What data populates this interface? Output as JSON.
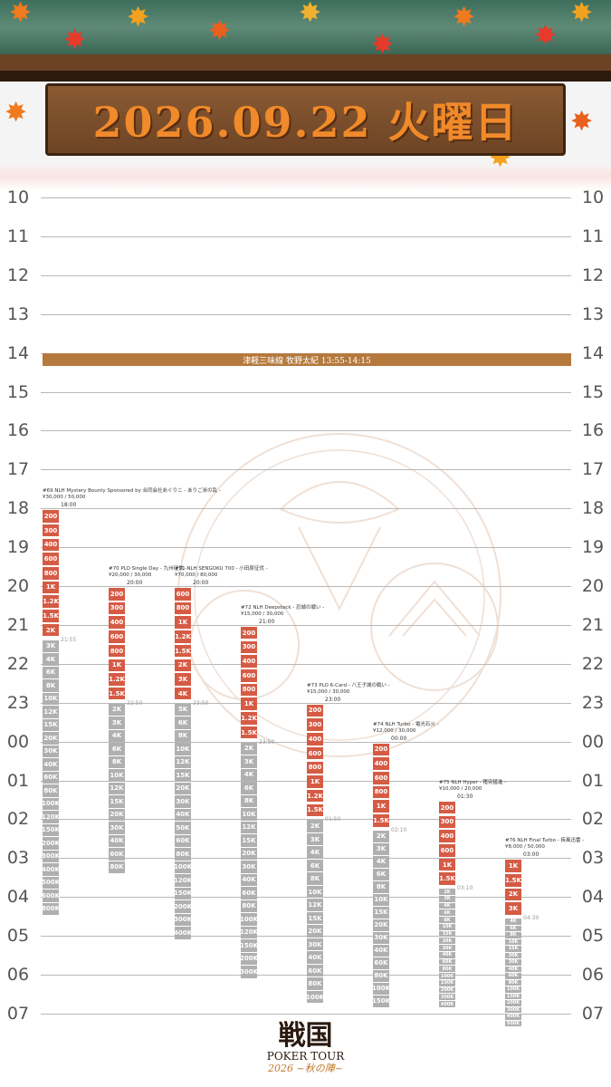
{
  "header": {
    "date": "2026.09.22 火曜日",
    "accent_color": "#f08a2a"
  },
  "hours": [
    "10",
    "11",
    "12",
    "13",
    "14",
    "15",
    "16",
    "17",
    "18",
    "19",
    "20",
    "21",
    "22",
    "23",
    "00",
    "01",
    "02",
    "03",
    "04",
    "05",
    "06",
    "07"
  ],
  "banner": {
    "text": "津軽三味線 牧野太紀 13:55-14:15"
  },
  "events": [
    {
      "title": "#69 NLH Mystery Bounty Sponsored by 合同会社あぐりこ - ありご米の乱 -",
      "price": "¥30,000 / 50,000",
      "start": "18:00",
      "end": "21:55",
      "levels_red": [
        "200",
        "300",
        "400",
        "600",
        "800",
        "1K",
        "1.2K",
        "1.5K",
        "2K"
      ],
      "levels_grey": [
        "3K",
        "4K",
        "6K",
        "8K",
        "10K",
        "12K",
        "15K",
        "20K",
        "30K",
        "40K",
        "60K",
        "80K",
        "100K",
        "120K",
        "150K",
        "200K",
        "300K",
        "400K",
        "500K",
        "600K",
        "800K"
      ]
    },
    {
      "title": "#70 PLO Single Day - 九州征伐 -",
      "price": "¥20,000 / 30,000",
      "start": "20:00",
      "end": "22:50",
      "levels_red": [
        "200",
        "300",
        "400",
        "600",
        "800",
        "1K",
        "1.2K",
        "1.5K"
      ],
      "levels_grey": [
        "2K",
        "3K",
        "4K",
        "6K",
        "8K",
        "10K",
        "12K",
        "15K",
        "20K",
        "30K",
        "40K",
        "60K",
        "80K"
      ]
    },
    {
      "title": "#71 NLH SENGOKU 700 - 小田原征伐 -",
      "price": "¥70,000 / 80,000",
      "start": "20:00",
      "end": "23:50",
      "levels_red": [
        "600",
        "800",
        "1K",
        "1.2K",
        "1.5K",
        "2K",
        "3K",
        "4K"
      ],
      "levels_grey": [
        "5K",
        "6K",
        "8K",
        "10K",
        "12K",
        "15K",
        "20K",
        "30K",
        "40K",
        "50K",
        "60K",
        "80K",
        "100K",
        "120K",
        "150K",
        "200K",
        "300K",
        "400K"
      ]
    },
    {
      "title": "#72 NLH Deepstack - 忍城の戦い -",
      "price": "¥15,000 / 30,000",
      "start": "21:00",
      "end": "23:50",
      "levels_red": [
        "200",
        "300",
        "400",
        "600",
        "800",
        "1K",
        "1.2K",
        "1.5K"
      ],
      "levels_grey": [
        "2K",
        "3K",
        "4K",
        "6K",
        "8K",
        "10K",
        "12K",
        "15K",
        "20K",
        "30K",
        "40K",
        "60K",
        "80K",
        "100K",
        "120K",
        "150K",
        "200K",
        "300K"
      ]
    },
    {
      "title": "#73 PLO 6-Card - 八王子城の戦い -",
      "price": "¥15,000 / 30,000",
      "start": "23:00",
      "end": "01:50",
      "levels_red": [
        "200",
        "300",
        "400",
        "600",
        "800",
        "1K",
        "1.2K",
        "1.5K"
      ],
      "levels_grey": [
        "2K",
        "3K",
        "4K",
        "6K",
        "8K",
        "10K",
        "12K",
        "15K",
        "20K",
        "30K",
        "40K",
        "60K",
        "80K",
        "100K"
      ]
    },
    {
      "title": "#74 NLH Turbo - 電光石火 -",
      "price": "¥12,000 / 30,000",
      "start": "00:00",
      "end": "02:10",
      "levels_red": [
        "200",
        "400",
        "600",
        "800",
        "1K",
        "1.5K"
      ],
      "levels_grey": [
        "2K",
        "3K",
        "4K",
        "6K",
        "8K",
        "10K",
        "15K",
        "20K",
        "30K",
        "40K",
        "60K",
        "80K",
        "100K",
        "150K"
      ]
    },
    {
      "title": "#75 NLH Hyper - 猪突猛進 -",
      "price": "¥10,000 / 20,000",
      "start": "01:30",
      "end": "03:10",
      "levels_red": [
        "200",
        "300",
        "400",
        "600",
        "1K",
        "1.5K"
      ],
      "levels_grey": [
        "2K",
        "3K",
        "4K",
        "6K",
        "8K",
        "10K",
        "15K",
        "20K",
        "30K",
        "40K",
        "60K",
        "80K",
        "100K",
        "150K",
        "200K",
        "300K",
        "400K"
      ]
    },
    {
      "title": "#76 NLH Final Turbo - 疾風迅雷 -",
      "price": "¥8,000 / 50,000",
      "start": "03:00",
      "end": "04:30",
      "levels_red": [
        "1K",
        "1.5K",
        "2K",
        "3K"
      ],
      "levels_grey": [
        "4K",
        "6K",
        "8K",
        "10K",
        "15K",
        "20K",
        "30K",
        "40K",
        "60K",
        "80K",
        "100K",
        "150K",
        "200K",
        "300K",
        "400K",
        "500K"
      ]
    }
  ],
  "logo": {
    "main": "戦国",
    "sub": "POKER TOUR",
    "year": "2026 ~秋の陣~"
  }
}
